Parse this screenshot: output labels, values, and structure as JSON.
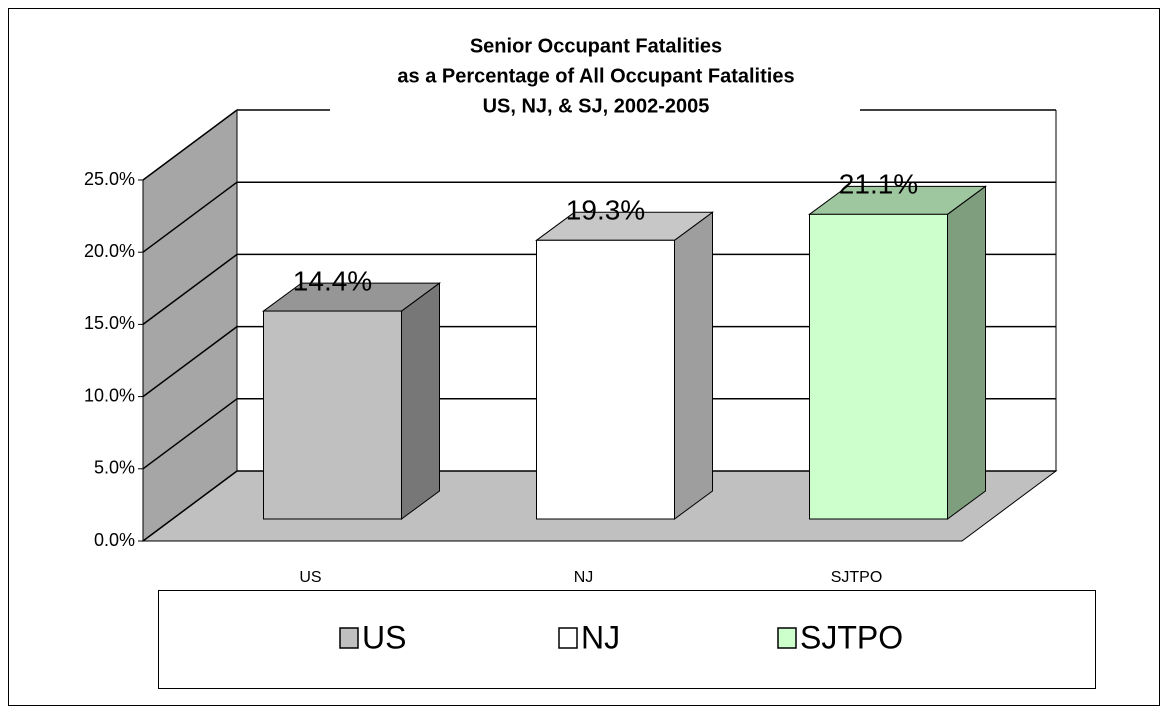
{
  "chart_data": {
    "type": "bar3d",
    "title": [
      "Senior Occupant Fatalities",
      "as a Percentage of All Occupant Fatalities",
      "US, NJ, & SJ,  2002-2005"
    ],
    "categories": [
      "US",
      "NJ",
      "SJTPO"
    ],
    "values": [
      14.4,
      19.3,
      21.1
    ],
    "value_labels": [
      "14.4%",
      "19.3%",
      "21.1%"
    ],
    "colors": [
      "#c0c0c0",
      "#ffffff",
      "#ccffcc"
    ],
    "ylim": [
      0,
      25
    ],
    "yticks": [
      {
        "value": 0,
        "label": "0.0%"
      },
      {
        "value": 5,
        "label": "5.0%"
      },
      {
        "value": 10,
        "label": "10.0%"
      },
      {
        "value": 15,
        "label": "15.0%"
      },
      {
        "value": 20,
        "label": "20.0%"
      },
      {
        "value": 25,
        "label": "25.0%"
      }
    ],
    "grid": true,
    "legend": "bottom"
  }
}
